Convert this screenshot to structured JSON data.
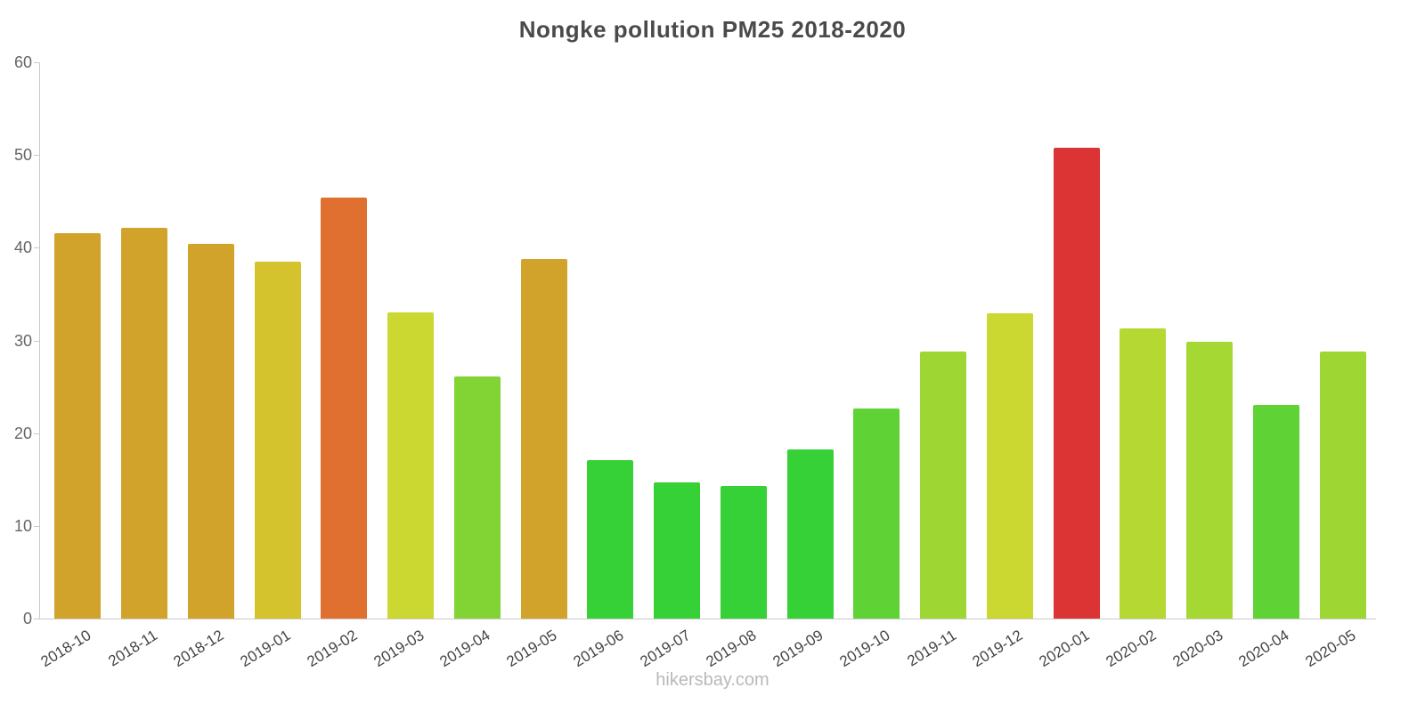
{
  "title": "Nongke pollution PM25 2018-2020",
  "footer": "hikersbay.com",
  "chart_data": {
    "type": "bar",
    "title": "Nongke pollution PM25 2018-2020",
    "xlabel": "",
    "ylabel": "",
    "ylim": [
      0,
      60
    ],
    "yticks": [
      0,
      10,
      20,
      30,
      40,
      50,
      60
    ],
    "grid": false,
    "legend": "none",
    "categories": [
      "2018-10",
      "2018-11",
      "2018-12",
      "2019-01",
      "2019-02",
      "2019-03",
      "2019-04",
      "2019-05",
      "2019-06",
      "2019-07",
      "2019-08",
      "2019-09",
      "2019-10",
      "2019-11",
      "2019-12",
      "2020-01",
      "2020-02",
      "2020-03",
      "2020-04",
      "2020-05"
    ],
    "values": [
      41.6,
      42.1,
      40.4,
      38.5,
      45.4,
      33.0,
      26.1,
      38.8,
      17.1,
      14.7,
      14.3,
      18.2,
      22.7,
      28.8,
      32.9,
      50.8,
      31.3,
      29.9,
      23.0,
      28.8
    ],
    "colors": [
      "#d1a32b",
      "#d1a32b",
      "#d1a32b",
      "#d5c32d",
      "#e0702f",
      "#ccd832",
      "#82d435",
      "#d1a32b",
      "#36d136",
      "#36d136",
      "#36d136",
      "#36d136",
      "#5fd336",
      "#9ed734",
      "#ccd832",
      "#dc3434",
      "#b6d833",
      "#a6d834",
      "#5fd336",
      "#9ed734"
    ],
    "axis_color": "#c9c9c9",
    "tick_label_color": "#666666",
    "category_label_color": "#444444"
  }
}
